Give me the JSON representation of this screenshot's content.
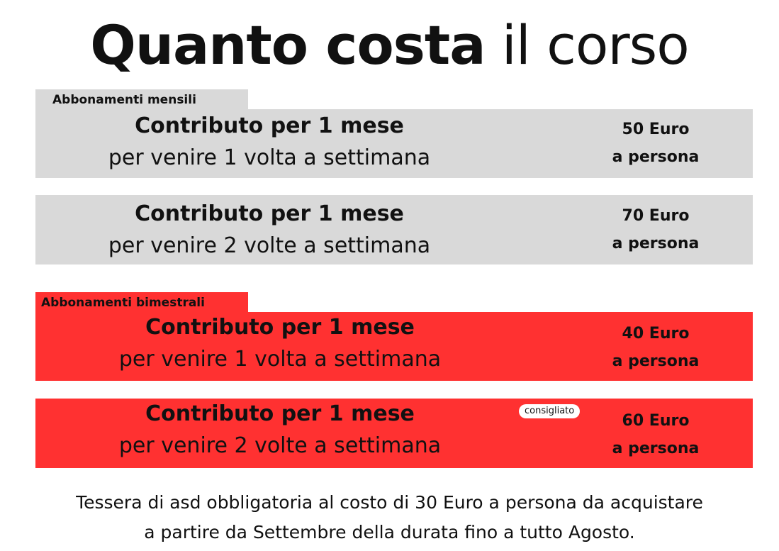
{
  "title": {
    "bold": "Quanto costa",
    "light": "il corso"
  },
  "sections": [
    {
      "label": "Abbonamenti mensili",
      "color": "#d9d9d9",
      "cards": [
        {
          "heading": "Contributo per 1 mese",
          "detail": "per venire 1 volta a settimana",
          "price": "50 Euro",
          "unit": "a persona"
        },
        {
          "heading": "Contributo per 1 mese",
          "detail": "per venire 2 volte a settimana",
          "price": "70 Euro",
          "unit": "a persona"
        }
      ]
    },
    {
      "label": "Abbonamenti bimestrali",
      "color": "#ff3131",
      "cards": [
        {
          "heading": "Contributo per 1 mese",
          "detail": "per venire 1 volta a settimana",
          "price": "40 Euro",
          "unit": "a persona"
        },
        {
          "heading": "Contributo per 1 mese",
          "detail": "per venire 2 volte a settimana",
          "price": "60 Euro",
          "unit": "a persona",
          "badge": "consigliato"
        }
      ]
    }
  ],
  "footer": {
    "line1": "Tessera di asd obbligatoria al costo di 30 Euro a persona da acquistare",
    "line2": "a partire da Settembre della durata fino a tutto Agosto."
  }
}
